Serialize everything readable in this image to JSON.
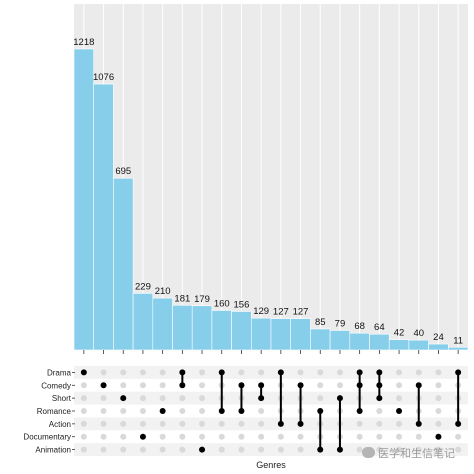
{
  "chart_data": {
    "type": "bar",
    "title": "",
    "xlabel": "Genres",
    "ylabel": "",
    "ylim": [
      0,
      1400
    ],
    "values": [
      1218,
      1076,
      695,
      229,
      210,
      181,
      179,
      160,
      156,
      129,
      127,
      127,
      85,
      79,
      68,
      64,
      42,
      40,
      24,
      11
    ],
    "sets": [
      "Drama",
      "Comedy",
      "Short",
      "Romance",
      "Action",
      "Documentary",
      "Animation"
    ],
    "intersections": [
      [
        "Drama"
      ],
      [
        "Comedy"
      ],
      [
        "Short"
      ],
      [
        "Documentary"
      ],
      [
        "Romance"
      ],
      [
        "Drama",
        "Comedy"
      ],
      [
        "Animation"
      ],
      [
        "Drama",
        "Romance"
      ],
      [
        "Comedy",
        "Romance"
      ],
      [
        "Comedy",
        "Short"
      ],
      [
        "Drama",
        "Action"
      ],
      [
        "Comedy",
        "Action"
      ],
      [
        "Romance",
        "Animation"
      ],
      [
        "Short",
        "Animation"
      ],
      [
        "Drama",
        "Comedy",
        "Romance"
      ],
      [
        "Drama",
        "Comedy",
        "Short"
      ],
      [
        "Romance"
      ],
      [
        "Comedy",
        "Action"
      ],
      [
        "Documentary"
      ],
      [
        "Drama",
        "Action"
      ]
    ],
    "bar_color": "#87ceeb",
    "panel_color": "#ebebeb",
    "dot_active_color": "#000000",
    "dot_inactive_color": "#d9d9d9",
    "grid": true
  },
  "watermark": "医学和生信笔记"
}
